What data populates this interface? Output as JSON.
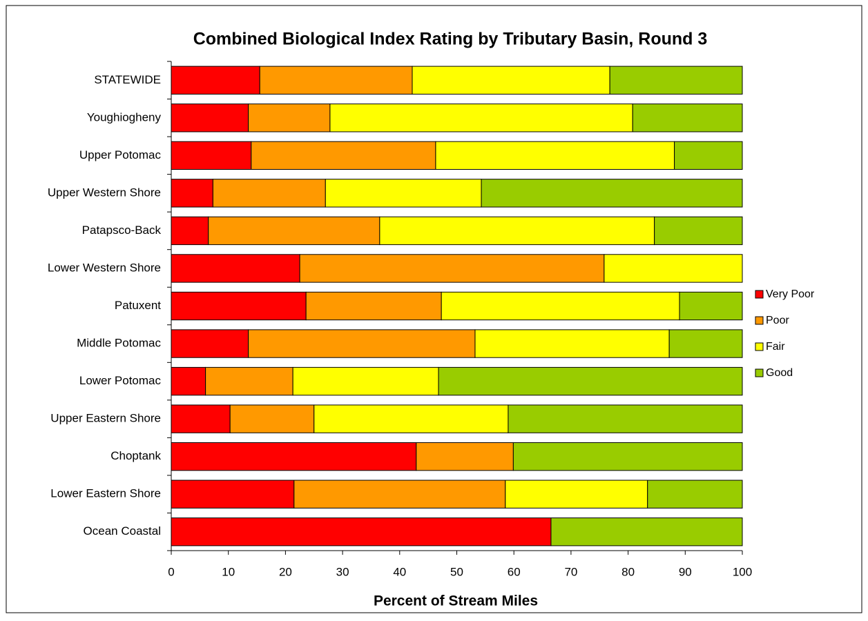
{
  "chart_data": {
    "type": "stacked-barh",
    "title": "Combined Biological Index Rating by Tributary Basin, Round 3",
    "x_label": "Percent of Stream Miles",
    "categories": [
      "STATEWIDE",
      "Youghiogheny",
      "Upper Potomac",
      "Upper Western Shore",
      "Patapsco-Back",
      "Lower Western Shore",
      "Patuxent",
      "Middle Potomac",
      "Lower Potomac",
      "Upper Eastern Shore",
      "Choptank",
      "Lower Eastern Shore",
      "Ocean Coastal"
    ],
    "series": [
      {
        "name": "Very Poor",
        "color": "#ff0000",
        "values": [
          15.5,
          13.5,
          14,
          7.3,
          6.5,
          22.5,
          23.6,
          13.5,
          6,
          10.3,
          42.9,
          21.5,
          66.5
        ]
      },
      {
        "name": "Poor",
        "color": "#ff9900",
        "values": [
          26.7,
          14.3,
          32.3,
          19.7,
          30,
          53.3,
          23.7,
          39.7,
          15.3,
          14.7,
          17,
          37,
          0
        ]
      },
      {
        "name": "Fair",
        "color": "#ffff00",
        "values": [
          34.6,
          53,
          41.8,
          27.3,
          48.1,
          24.2,
          41.7,
          34,
          25.5,
          34,
          0,
          24.9,
          0
        ]
      },
      {
        "name": "Good",
        "color": "#99cc00",
        "values": [
          23.2,
          19.2,
          11.9,
          45.7,
          15.4,
          0,
          11,
          12.8,
          53.2,
          41,
          40.1,
          16.6,
          33.5
        ]
      }
    ],
    "xlim": [
      0,
      100
    ],
    "xticks": [
      0,
      10,
      20,
      30,
      40,
      50,
      60,
      70,
      80,
      90,
      100
    ],
    "legend": "right"
  }
}
